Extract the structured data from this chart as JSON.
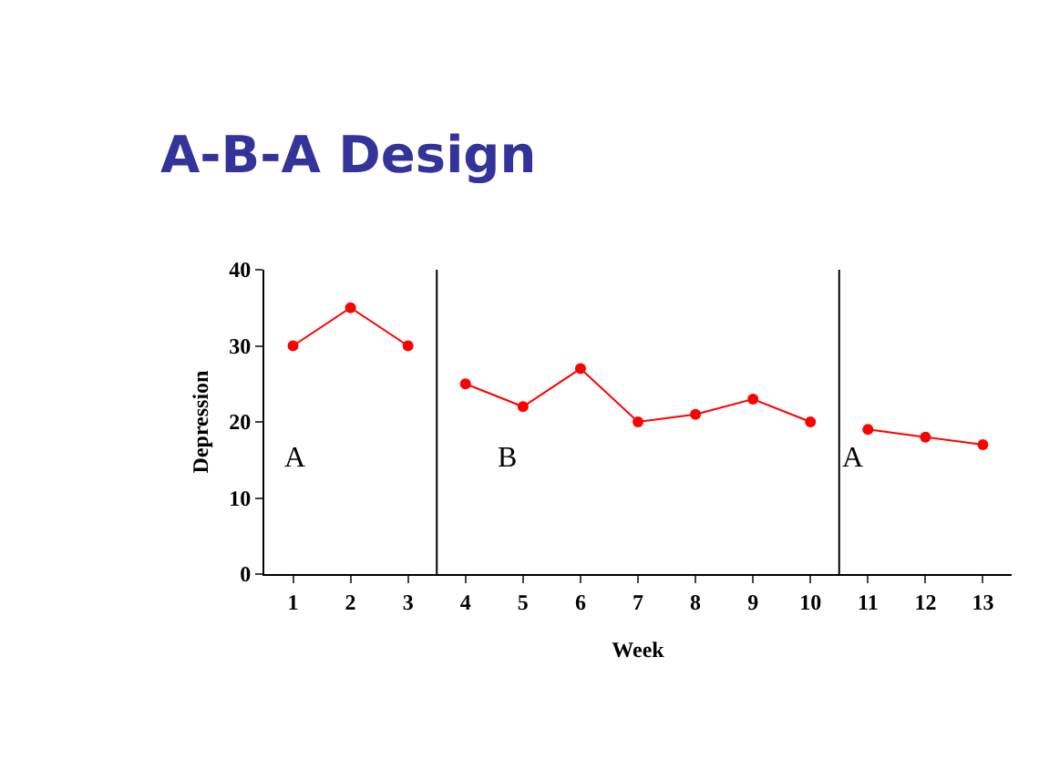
{
  "chart_data": {
    "type": "line",
    "title": "A-B-A Design",
    "xlabel": "Week",
    "ylabel": "Depression",
    "series": [
      {
        "color": "#ff0000",
        "x": [
          1,
          2,
          3
        ],
        "values": [
          30,
          35,
          30
        ]
      },
      {
        "color": "#ff0000",
        "x": [
          4,
          5,
          6,
          7,
          8,
          9,
          10
        ],
        "values": [
          25,
          22,
          27,
          20,
          21,
          23,
          20
        ]
      },
      {
        "color": "#ff0000",
        "x": [
          11,
          12,
          13
        ],
        "values": [
          19,
          18,
          17
        ]
      }
    ],
    "xlim": [
      0.5,
      13.5
    ],
    "xticks": [
      1,
      2,
      3,
      4,
      5,
      6,
      7,
      8,
      9,
      10,
      11,
      12,
      13
    ],
    "ylim": [
      0,
      40
    ],
    "yticks": [
      0,
      10,
      20,
      30,
      40
    ],
    "ref_lines": [
      {
        "axis": "x",
        "value": 3.5,
        "color": "#000000"
      },
      {
        "axis": "x",
        "value": 10.5,
        "color": "#000000"
      }
    ],
    "annotations": [
      "A",
      "B",
      "A"
    ],
    "marker": "circle",
    "line_style": "solid"
  }
}
